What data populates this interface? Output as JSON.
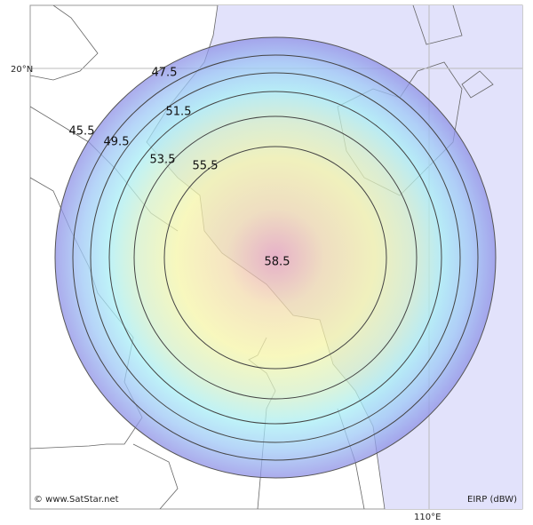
{
  "map": {
    "lat_label": "20°N",
    "lon_label": "110°E",
    "credit": "© www.SatStar.net",
    "unit_label": "EIRP (dBW)",
    "contours": [
      {
        "value": 45.5
      },
      {
        "value": 47.5
      },
      {
        "value": 49.5
      },
      {
        "value": 51.5
      },
      {
        "value": 53.5
      },
      {
        "value": 55.5
      }
    ],
    "peak": 58.5
  }
}
